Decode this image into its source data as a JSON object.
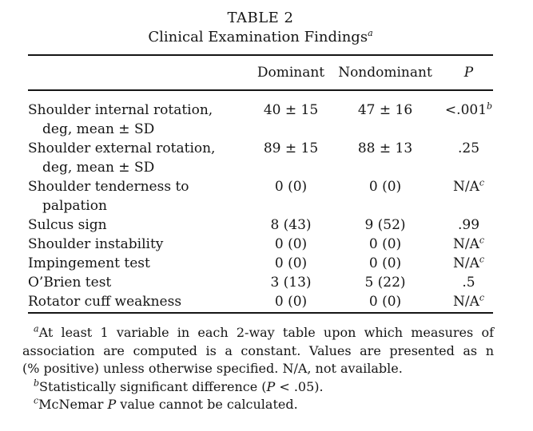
{
  "title": {
    "label": "TABLE 2",
    "text": "Clinical Examination Findings",
    "sup": "a"
  },
  "table": {
    "columns": [
      "Dominant",
      "Nondominant",
      "P"
    ],
    "rows": [
      {
        "label1": "Shoulder internal rotation,",
        "label2": "deg, mean ± SD",
        "dominant": "40 ± 15",
        "nondominant": "47 ± 16",
        "p": "<.001",
        "p_sup": "b"
      },
      {
        "label1": "Shoulder external rotation,",
        "label2": "deg, mean ± SD",
        "dominant": "89 ± 15",
        "nondominant": "88 ± 13",
        "p": ".25"
      },
      {
        "label1": "Shoulder tenderness to",
        "label2": "palpation",
        "dominant": "0 (0)",
        "nondominant": "0 (0)",
        "p": "N/A",
        "p_sup": "c"
      },
      {
        "label1": "Sulcus sign",
        "dominant": "8 (43)",
        "nondominant": "9 (52)",
        "p": ".99"
      },
      {
        "label1": "Shoulder instability",
        "dominant": "0 (0)",
        "nondominant": "0 (0)",
        "p": "N/A",
        "p_sup": "c"
      },
      {
        "label1": "Impingement test",
        "dominant": "0 (0)",
        "nondominant": "0 (0)",
        "p": "N/A",
        "p_sup": "c"
      },
      {
        "label1": "O’Brien test",
        "dominant": "3 (13)",
        "nondominant": "5 (22)",
        "p": ".5"
      },
      {
        "label1": "Rotator cuff weakness",
        "dominant": "0 (0)",
        "nondominant": "0 (0)",
        "p": "N/A",
        "p_sup": "c"
      }
    ]
  },
  "footnotes": {
    "a": {
      "sup": "a",
      "line1": "At least 1 variable in each 2-way table upon which measures of",
      "line2": "association are computed is a constant. Values are presented as n",
      "line3": "(% positive) unless otherwise specified. N/A, not available."
    },
    "b": {
      "sup": "b",
      "pre": "Statistically significant difference (",
      "italic": "P",
      "post": " < .05)."
    },
    "c": {
      "sup": "c",
      "pre": "McNemar ",
      "italic": "P",
      "post": " value cannot be calculated."
    }
  },
  "colors": {
    "text": "#151515",
    "background": "#ffffff",
    "rule": "#151515"
  }
}
